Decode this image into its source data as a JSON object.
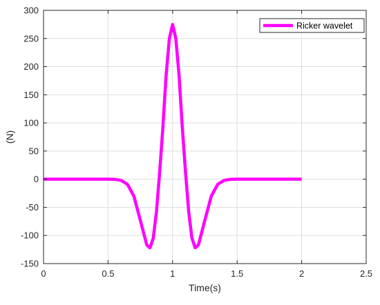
{
  "chart_data": {
    "type": "line",
    "title": "",
    "xlabel": "Time(s)",
    "ylabel": "(N)",
    "xlim": [
      0,
      2.5
    ],
    "ylim": [
      -150,
      300
    ],
    "xticks": [
      0,
      0.5,
      1,
      1.5,
      2,
      2.5
    ],
    "xtick_labels": [
      "0",
      "0.5",
      "1",
      "1.5",
      "2",
      "2.5"
    ],
    "yticks": [
      -150,
      -100,
      -50,
      0,
      50,
      100,
      150,
      200,
      250,
      300
    ],
    "ytick_labels": [
      "-150",
      "-100",
      "-50",
      "0",
      "50",
      "100",
      "150",
      "200",
      "250",
      "300"
    ],
    "grid": true,
    "legend_location": "top-right",
    "series": [
      {
        "name": "Ricker wavelet",
        "color": "#ff00ff",
        "x": [
          0,
          0.1,
          0.2,
          0.3,
          0.4,
          0.5,
          0.55,
          0.6,
          0.65,
          0.7,
          0.75,
          0.8,
          0.825,
          0.85,
          0.875,
          0.9,
          0.925,
          0.95,
          0.975,
          1.0,
          1.025,
          1.05,
          1.075,
          1.1,
          1.125,
          1.15,
          1.175,
          1.2,
          1.25,
          1.3,
          1.35,
          1.4,
          1.45,
          1.5,
          1.6,
          1.7,
          1.8,
          1.9,
          2.0
        ],
        "y": [
          0,
          0,
          0,
          0,
          0,
          0,
          -0.3,
          -2,
          -9,
          -30,
          -73,
          -117,
          -122,
          -105,
          -58,
          13,
          93,
          185,
          250,
          275,
          250,
          185,
          93,
          13,
          -58,
          -105,
          -122,
          -117,
          -73,
          -30,
          -9,
          -2,
          -0.3,
          0,
          0,
          0,
          0,
          0,
          0
        ]
      }
    ]
  }
}
